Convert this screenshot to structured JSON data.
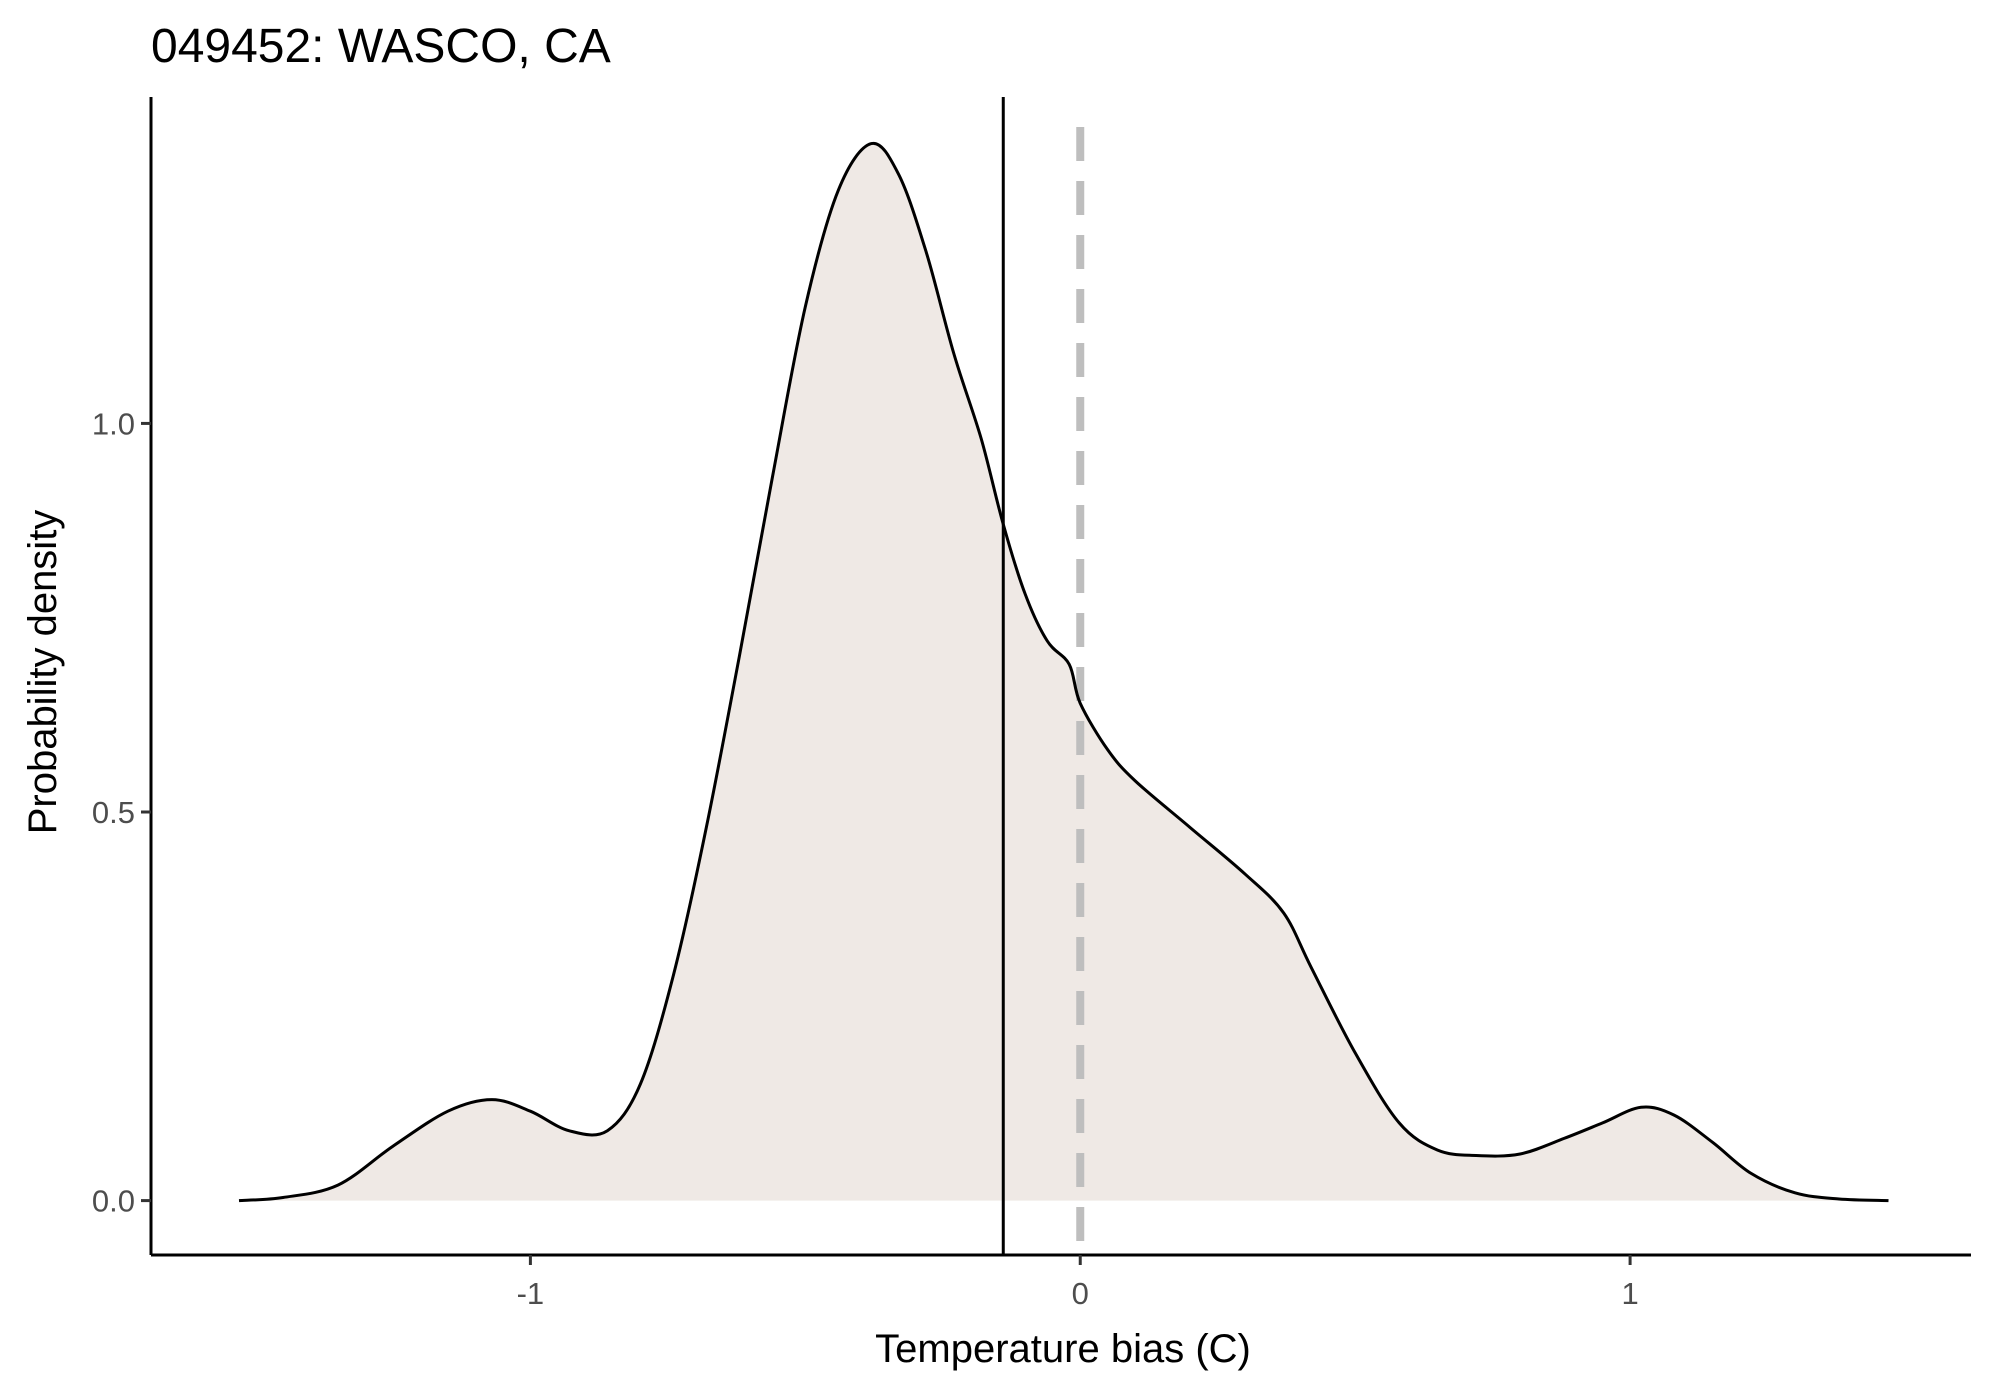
{
  "chart_data": {
    "type": "area",
    "title": "049452: WASCO, CA",
    "xlabel": "Temperature bias (C)",
    "ylabel": "Probability density",
    "xlim": [
      -1.69,
      1.62
    ],
    "ylim": [
      -0.07,
      1.42
    ],
    "x_ticks": [
      -1,
      0,
      1
    ],
    "x_tick_labels": [
      "-1",
      "0",
      "1"
    ],
    "y_ticks": [
      0.0,
      0.5,
      1.0
    ],
    "y_tick_labels": [
      "0.0",
      "0.5",
      "1.0"
    ],
    "grid": false,
    "mean_line_x": -0.14,
    "reference_line_x": 0,
    "fill_color": "#efe9e5",
    "line_color": "#000000",
    "reference_line_color": "#bebebe",
    "series": [
      {
        "x": [
          -1.53,
          -1.45,
          -1.35,
          -1.25,
          -1.15,
          -1.07,
          -1.0,
          -0.93,
          -0.86,
          -0.8,
          -0.74,
          -0.68,
          -0.62,
          -0.56,
          -0.5,
          -0.44,
          -0.38,
          -0.33,
          -0.28,
          -0.23,
          -0.18,
          -0.14,
          -0.1,
          -0.06,
          -0.02,
          0.0,
          0.05,
          0.1,
          0.2,
          0.3,
          0.37,
          0.42,
          0.5,
          0.58,
          0.65,
          0.72,
          0.8,
          0.88,
          0.95,
          1.02,
          1.08,
          1.15,
          1.22,
          1.3,
          1.38,
          1.47
        ],
        "y": [
          0.0,
          0.004,
          0.02,
          0.07,
          0.115,
          0.13,
          0.115,
          0.09,
          0.09,
          0.15,
          0.29,
          0.48,
          0.7,
          0.93,
          1.15,
          1.3,
          1.36,
          1.32,
          1.22,
          1.09,
          0.98,
          0.87,
          0.78,
          0.72,
          0.69,
          0.64,
          0.58,
          0.54,
          0.48,
          0.42,
          0.37,
          0.3,
          0.19,
          0.1,
          0.065,
          0.058,
          0.06,
          0.08,
          0.1,
          0.12,
          0.11,
          0.075,
          0.035,
          0.01,
          0.002,
          0.0
        ]
      }
    ]
  }
}
